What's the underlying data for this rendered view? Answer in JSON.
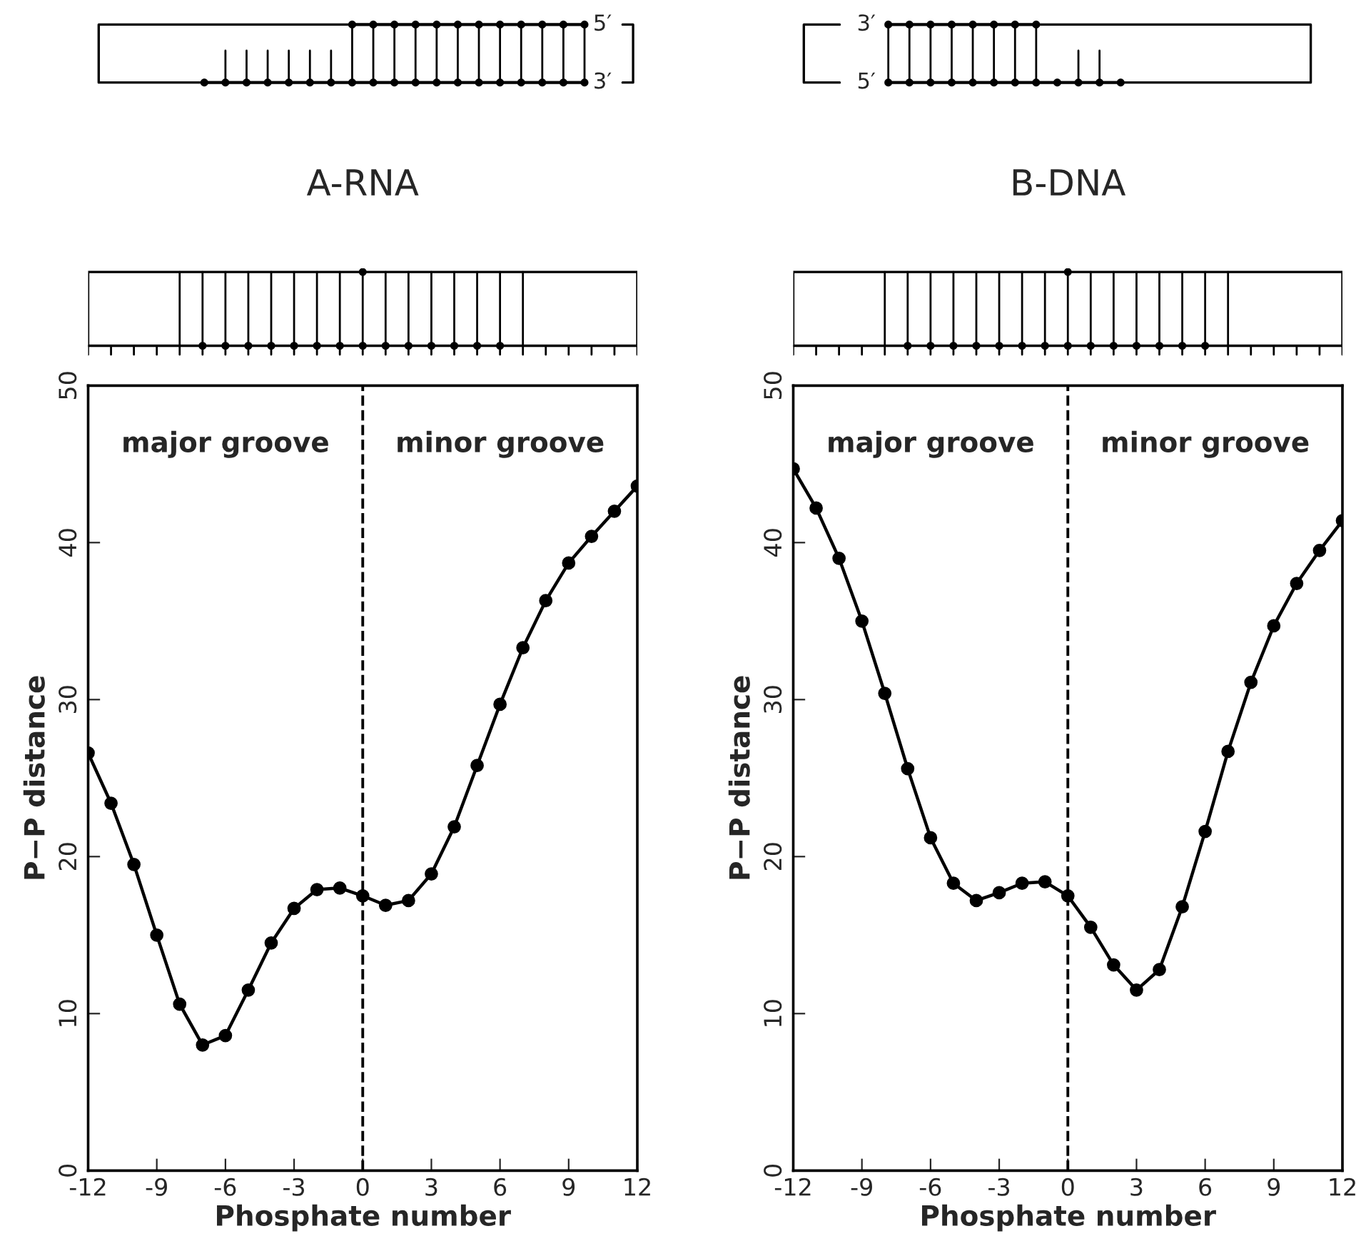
{
  "chart_data": [
    {
      "type": "line",
      "title": "A-RNA",
      "xlabel": "Phosphate number",
      "ylabel": "P−P distance",
      "x": [
        -12,
        -11,
        -10,
        -9,
        -8,
        -7,
        -6,
        -5,
        -4,
        -3,
        -2,
        -1,
        0,
        1,
        2,
        3,
        4,
        5,
        6,
        7,
        8,
        9,
        10,
        11,
        12
      ],
      "series": [
        {
          "color": "#000000",
          "values": [
            26.6,
            23.4,
            19.5,
            15.0,
            10.6,
            8.0,
            8.6,
            11.5,
            14.5,
            16.7,
            17.9,
            18.0,
            17.5,
            16.9,
            17.2,
            18.9,
            21.9,
            25.8,
            29.7,
            33.3,
            36.3,
            38.7,
            40.4,
            42.0,
            43.6
          ]
        }
      ],
      "xlim": [
        -12,
        12
      ],
      "xticks": [
        -12,
        -9,
        -6,
        -3,
        0,
        3,
        6,
        9,
        12
      ],
      "ylim": [
        0,
        50
      ],
      "yticks": [
        0,
        10,
        20,
        30,
        40,
        50
      ],
      "ref_lines": [
        {
          "axis": "x",
          "value": 0,
          "line_style": "dashed",
          "color": "#000000"
        }
      ],
      "annotations": [
        "major groove",
        "minor groove",
        "5′",
        "3′"
      ],
      "marker": "circle",
      "line_style": "solid",
      "grid": false,
      "legend": false
    },
    {
      "type": "line",
      "title": "B-DNA",
      "xlabel": "Phosphate number",
      "ylabel": "P−P distance",
      "x": [
        -12,
        -11,
        -10,
        -9,
        -8,
        -7,
        -6,
        -5,
        -4,
        -3,
        -2,
        -1,
        0,
        1,
        2,
        3,
        4,
        5,
        6,
        7,
        8,
        9,
        10,
        11,
        12
      ],
      "series": [
        {
          "color": "#000000",
          "values": [
            44.7,
            42.2,
            39.0,
            35.0,
            30.4,
            25.6,
            21.2,
            18.3,
            17.2,
            17.7,
            18.3,
            18.4,
            17.5,
            15.5,
            13.1,
            11.5,
            12.8,
            16.8,
            21.6,
            26.7,
            31.1,
            34.7,
            37.4,
            39.5,
            41.4
          ]
        }
      ],
      "xlim": [
        -12,
        12
      ],
      "xticks": [
        -12,
        -9,
        -6,
        -3,
        0,
        3,
        6,
        9,
        12
      ],
      "ylim": [
        0,
        50
      ],
      "yticks": [
        0,
        10,
        20,
        30,
        40,
        50
      ],
      "ref_lines": [
        {
          "axis": "x",
          "value": 0,
          "line_style": "dashed",
          "color": "#000000"
        }
      ],
      "annotations": [
        "major groove",
        "minor groove",
        "3′",
        "5′"
      ],
      "marker": "circle",
      "line_style": "solid",
      "grid": false,
      "legend": false
    }
  ]
}
